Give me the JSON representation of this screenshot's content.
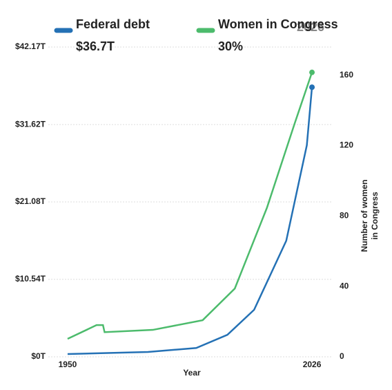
{
  "chart_data": {
    "type": "line",
    "header_year": "2026",
    "xlabel": "Year",
    "y2label": [
      "Number of women",
      "in Congress"
    ],
    "xlim": [
      1944,
      2032
    ],
    "xticks": [
      1950,
      2026
    ],
    "ylim": [
      0,
      42.17
    ],
    "yticks": [
      {
        "value": 0,
        "label": "$0T"
      },
      {
        "value": 10.54,
        "label": "$10.54T"
      },
      {
        "value": 21.08,
        "label": "$21.08T"
      },
      {
        "value": 31.62,
        "label": "$31.62T"
      },
      {
        "value": 42.17,
        "label": "$42.17T"
      }
    ],
    "y2lim": [
      0,
      176
    ],
    "y2ticks": [
      0,
      40,
      80,
      120,
      160
    ],
    "grid": true,
    "series": [
      {
        "name": "Federal debt",
        "headline": "$36.7T",
        "color": "#2471b5",
        "x": [
          1950,
          1975,
          1990,
          1999.7,
          2008,
          2018,
          2024.4,
          2026
        ],
        "values": [
          0.38,
          0.66,
          1.2,
          3.0,
          6.4,
          15.8,
          28.8,
          36.7
        ]
      },
      {
        "name": "Women in Congress",
        "headline": "30%",
        "color": "#4cbb6c",
        "axis": "y2",
        "x": [
          1950,
          1959,
          1961,
          1961.5,
          1976.5,
          1992,
          2002,
          2012,
          2020.6,
          2026
        ],
        "values": [
          10.2,
          18,
          18,
          14,
          15.3,
          20.8,
          38.8,
          84.7,
          132.5,
          161.6
        ]
      }
    ]
  }
}
